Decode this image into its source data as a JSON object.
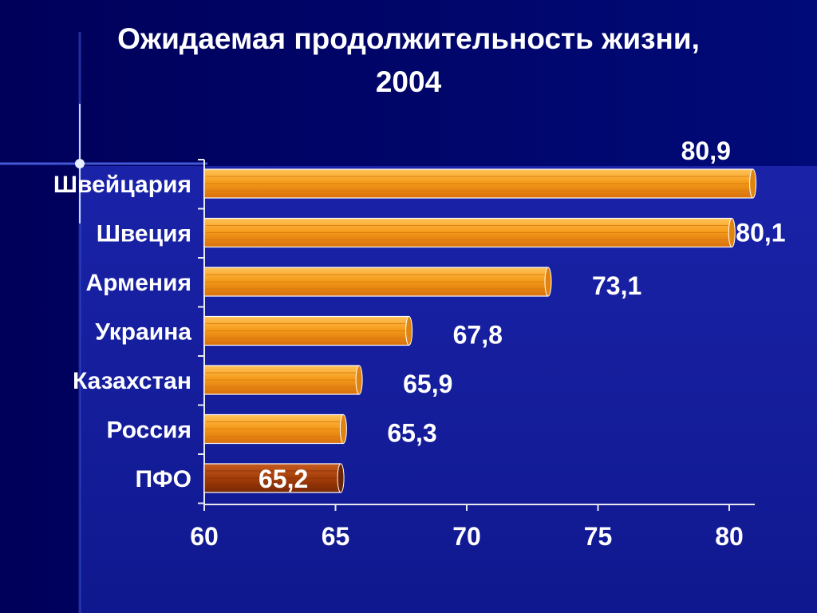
{
  "slide": {
    "title_line1": "Ожидаемая продолжительность  жизни,",
    "title_line2": "2004"
  },
  "colors": {
    "background": "#000066",
    "bar_orange": "#f5a41a",
    "bar_highlight": "#a33d08",
    "text": "#ffffff"
  },
  "chart_data": {
    "type": "bar",
    "orientation": "horizontal",
    "title": "Ожидаемая продолжительность  жизни, 2004",
    "categories": [
      "Швейцария",
      "Швеция",
      "Армения",
      "Украина",
      "Казахстан",
      "Россия",
      "ПФО"
    ],
    "values": [
      80.9,
      80.1,
      73.1,
      67.8,
      65.9,
      65.3,
      65.2
    ],
    "value_labels": [
      "80,9",
      "80,1",
      "73,1",
      "67,8",
      "65,9",
      "65,3",
      "65,2"
    ],
    "highlighted_category": "ПФО",
    "xlim": [
      60,
      81
    ],
    "xticks": [
      60,
      65,
      70,
      75,
      80
    ],
    "xtick_labels": [
      "60",
      "65",
      "70",
      "75",
      "80"
    ],
    "grid": false,
    "legend": "none"
  }
}
